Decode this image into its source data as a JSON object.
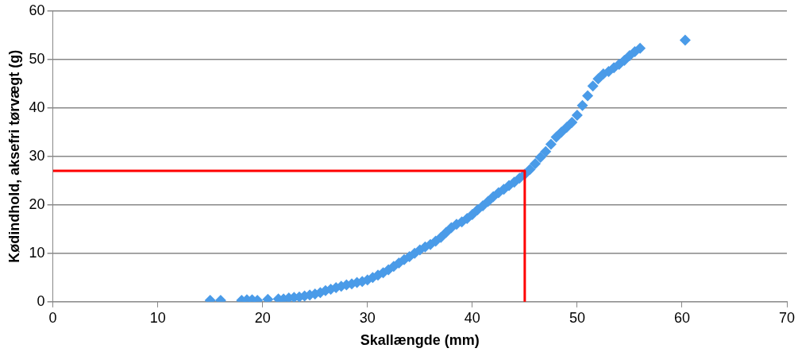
{
  "chart_data": {
    "type": "scatter",
    "xlabel": "Skallængde (mm)",
    "ylabel": "Kødindhold, aksefri tørvægt (g)",
    "xlim": [
      0,
      70
    ],
    "xticks": [
      0,
      10,
      20,
      30,
      40,
      50,
      60,
      70
    ],
    "ylim": [
      0,
      60
    ],
    "yticks": [
      0,
      10,
      20,
      30,
      40,
      50,
      60
    ],
    "grid": "y",
    "legend": false,
    "marker": "diamond",
    "series": [
      {
        "color": "#4a9be8",
        "x": [
          15,
          16,
          18,
          18.5,
          19,
          19.5,
          20.5,
          21.5,
          22,
          22.5,
          23,
          23.5,
          24,
          24.5,
          25,
          25.5,
          26,
          26.5,
          27,
          27.5,
          28,
          28.5,
          29,
          29.5,
          30,
          30.5,
          31,
          31.5,
          32,
          32.5,
          33,
          33.5,
          34,
          34.5,
          35,
          35.5,
          36,
          36.5,
          37,
          37.5,
          38,
          38.5,
          39,
          39.5,
          40,
          40.5,
          41,
          41.5,
          42,
          42.5,
          43,
          43.5,
          44,
          44.5,
          45,
          45.5,
          46,
          46.5,
          47,
          47.5,
          48,
          48.5,
          49,
          49.5,
          50,
          50.5,
          51,
          51.5,
          52,
          52.5,
          53,
          53.5,
          54,
          54.5,
          55,
          55.5,
          56,
          60.3
        ],
        "values": [
          0.3,
          0.3,
          0.3,
          0.4,
          0.4,
          0.3,
          0.5,
          0.6,
          0.6,
          0.8,
          0.9,
          1,
          1.2,
          1.4,
          1.6,
          1.9,
          2.3,
          2.6,
          2.9,
          3.2,
          3.5,
          3.7,
          4,
          4.2,
          4.5,
          5,
          5.5,
          6,
          6.6,
          7.3,
          8,
          8.7,
          9.3,
          10,
          10.7,
          11.3,
          11.8,
          12.5,
          13.3,
          14.3,
          15.3,
          16,
          16.5,
          17.2,
          18,
          19,
          19.8,
          20.7,
          21.7,
          22.5,
          23.2,
          24,
          24.7,
          25.5,
          26.3,
          27.3,
          28.5,
          29.8,
          31,
          32.5,
          34,
          35,
          36,
          37,
          38.5,
          40.5,
          42.5,
          44.5,
          46,
          47,
          47.5,
          48.3,
          49,
          49.8,
          50.8,
          51.6,
          52.3,
          54
        ]
      },
      {
        "type": "line",
        "color": "#ff0000",
        "marker": "none",
        "line_style": "solid",
        "x": [
          0,
          45,
          45
        ],
        "values": [
          27,
          27,
          0
        ]
      }
    ]
  }
}
